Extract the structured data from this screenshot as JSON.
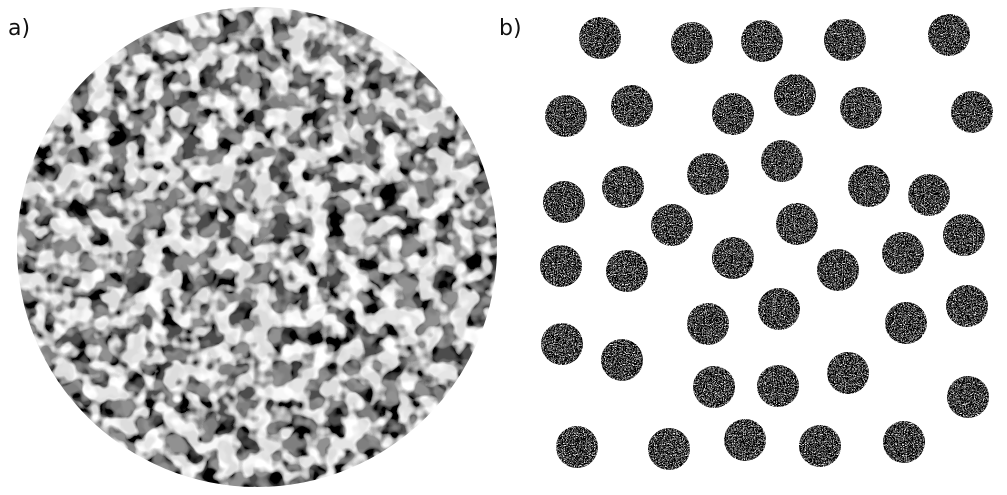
{
  "panels": {
    "a": {
      "label": "a)",
      "content": "speckle-disk",
      "colors": {
        "dark": "#000000",
        "light": "#ffffff"
      }
    },
    "b": {
      "label": "b)",
      "content": "dot-array",
      "dot_count": 40,
      "colors": {
        "dark": "#000000",
        "light": "#ffffff"
      }
    }
  }
}
